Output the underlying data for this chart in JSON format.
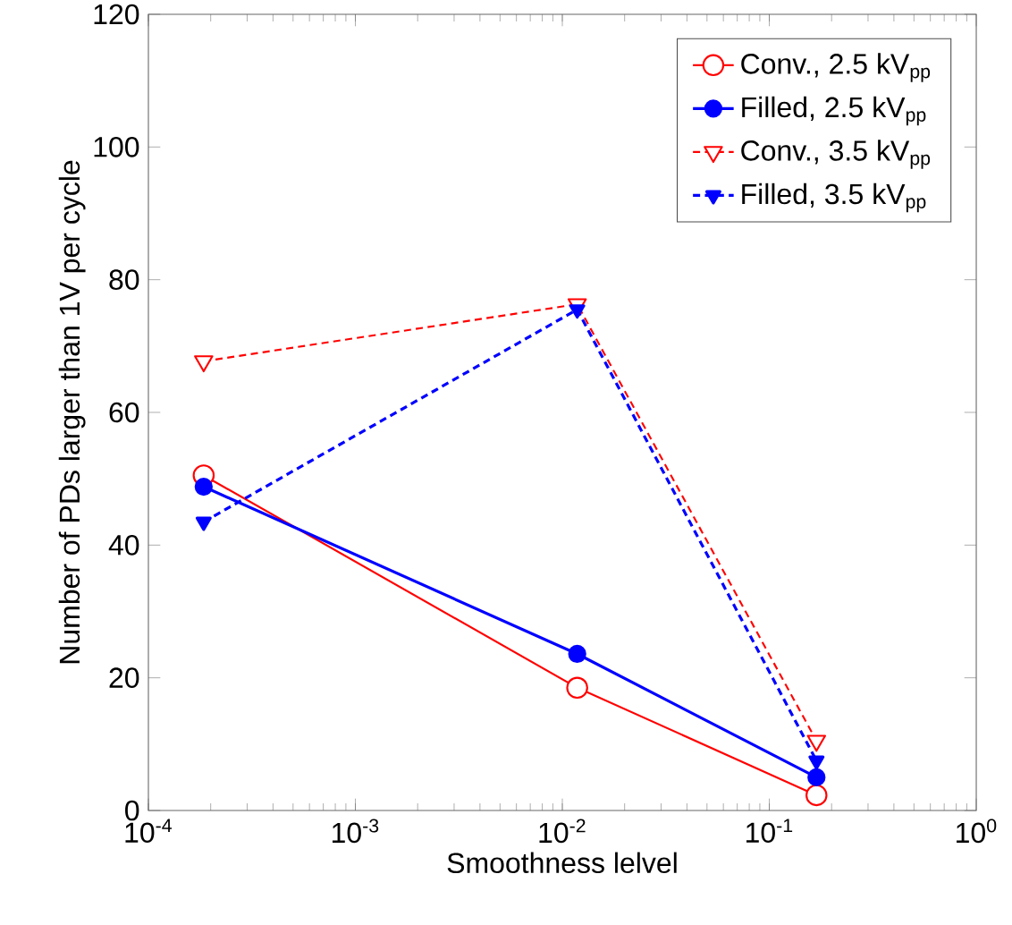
{
  "chart_data": {
    "type": "line",
    "xlabel": "Smoothness lelvel",
    "ylabel": "Number of PDs larger than 1V per cycle",
    "log": "x",
    "xlim": [
      0.0001,
      1
    ],
    "ylim": [
      0,
      120
    ],
    "xticks": [
      {
        "value": 0.0001,
        "label": "10$^{-4}$"
      },
      {
        "value": 0.001,
        "label": "10$^{-3}$"
      },
      {
        "value": 0.01,
        "label": "10$^{-2}$"
      },
      {
        "value": 0.1,
        "label": "10$^{-1}$"
      },
      {
        "value": 1,
        "label": "10$^{0}$"
      }
    ],
    "yticks": [
      0,
      20,
      40,
      60,
      80,
      100,
      120
    ],
    "x": [
      0.000185,
      0.0118,
      0.169
    ],
    "legend": "top right",
    "grid": false,
    "series": [
      {
        "name": "Conv., 2.5 kV$_{pp}$",
        "color": "#ff0000",
        "marker": "circle",
        "line_style": "solid",
        "values": [
          50.5,
          18.5,
          2.3
        ]
      },
      {
        "name": "Filled, 2.5 kV$_{pp}$",
        "color": "#0000ff",
        "marker": "circle",
        "line_style": "solid",
        "values": [
          48.8,
          23.6,
          5.0
        ]
      },
      {
        "name": "Conv., 3.5 kV$_{pp}$",
        "color": "#ff0000",
        "marker": "triangle",
        "line_style": "dashed",
        "values": [
          67.7,
          76.3,
          10.5
        ]
      },
      {
        "name": "Filled, 3.5 kV$_{pp}$",
        "color": "#0000ff",
        "marker": "triangle",
        "line_style": "dashed",
        "values": [
          43.5,
          75.5,
          7.5
        ]
      }
    ]
  }
}
